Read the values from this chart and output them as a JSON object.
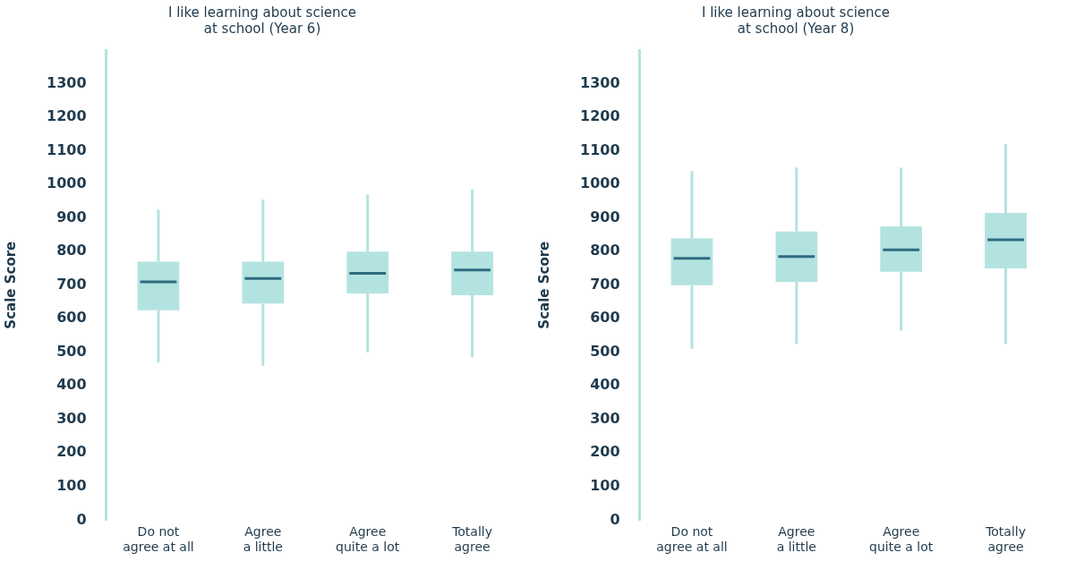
{
  "chart_data": [
    {
      "type": "box",
      "title": "I like learning about science\nat school (Year 6)",
      "ylabel": "Scale Score",
      "categories": [
        "Do not\nagree at all",
        "Agree\na little",
        "Agree\nquite a lot",
        "Totally\nagree"
      ],
      "ylim": [
        0,
        1400
      ],
      "yticks": [
        0,
        100,
        200,
        300,
        400,
        500,
        600,
        700,
        800,
        900,
        1000,
        1100,
        1200,
        1300
      ],
      "grid": false,
      "legend": false,
      "series": [
        {
          "color": "#b3e3e0",
          "boxes": [
            {
              "low": 470,
              "q1": 625,
              "median": 710,
              "q3": 770,
              "high": 925
            },
            {
              "low": 460,
              "q1": 645,
              "median": 720,
              "q3": 770,
              "high": 955
            },
            {
              "low": 500,
              "q1": 675,
              "median": 735,
              "q3": 800,
              "high": 970
            },
            {
              "low": 485,
              "q1": 670,
              "median": 745,
              "q3": 800,
              "high": 985
            }
          ]
        }
      ]
    },
    {
      "type": "box",
      "title": "I like learning about science\nat school (Year 8)",
      "ylabel": "Scale Score",
      "categories": [
        "Do not\nagree at all",
        "Agree\na little",
        "Agree\nquite a lot",
        "Totally\nagree"
      ],
      "ylim": [
        0,
        1400
      ],
      "yticks": [
        0,
        100,
        200,
        300,
        400,
        500,
        600,
        700,
        800,
        900,
        1000,
        1100,
        1200,
        1300
      ],
      "grid": false,
      "legend": false,
      "series": [
        {
          "color": "#b3e3e0",
          "boxes": [
            {
              "low": 510,
              "q1": 700,
              "median": 780,
              "q3": 840,
              "high": 1040
            },
            {
              "low": 525,
              "q1": 710,
              "median": 785,
              "q3": 860,
              "high": 1050
            },
            {
              "low": 565,
              "q1": 740,
              "median": 805,
              "q3": 875,
              "high": 1050
            },
            {
              "low": 525,
              "q1": 750,
              "median": 835,
              "q3": 915,
              "high": 1120
            }
          ]
        }
      ]
    }
  ]
}
